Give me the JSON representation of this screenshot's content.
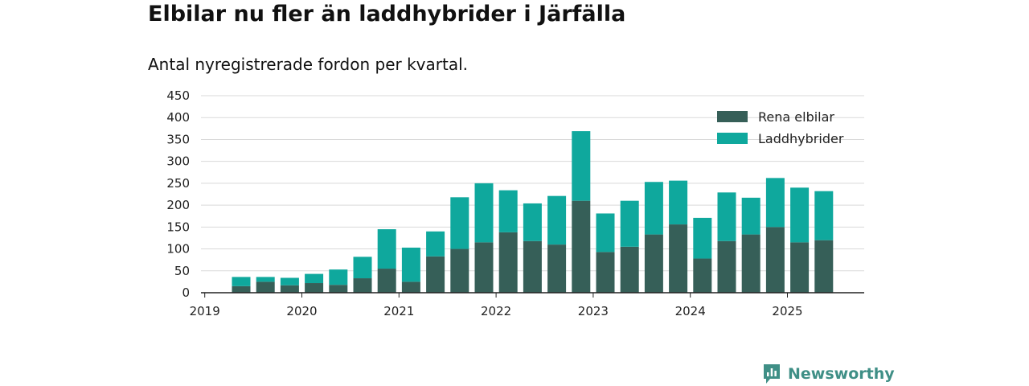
{
  "title": "Elbilar nu fler än laddhybrider i Järfälla",
  "subtitle": "Antal nyregistrerade fordon per kvartal.",
  "brand": "Newsworthy",
  "colors": {
    "elbilar": "#365f58",
    "laddhybrider": "#0fa89d",
    "brand": "#3f8f86",
    "grid": "#d9d9d9",
    "axis": "#222222"
  },
  "chart_data": {
    "type": "bar",
    "stacked": true,
    "x_tick_labels": [
      "2019",
      "2020",
      "2021",
      "2022",
      "2023",
      "2024",
      "2025"
    ],
    "categories": [
      "2019 Q2",
      "2019 Q3",
      "2019 Q4",
      "2020 Q1",
      "2020 Q2",
      "2020 Q3",
      "2020 Q4",
      "2021 Q1",
      "2021 Q2",
      "2021 Q3",
      "2021 Q4",
      "2022 Q1",
      "2022 Q2",
      "2022 Q3",
      "2022 Q4",
      "2023 Q1",
      "2023 Q2",
      "2023 Q3",
      "2023 Q4",
      "2024 Q1",
      "2024 Q2",
      "2024 Q3",
      "2024 Q4",
      "2025 Q1",
      "2025 Q2"
    ],
    "series": [
      {
        "name": "Rena elbilar",
        "color": "#365f58",
        "values": [
          15,
          25,
          17,
          22,
          18,
          33,
          55,
          25,
          83,
          100,
          115,
          138,
          118,
          110,
          210,
          93,
          105,
          133,
          156,
          78,
          118,
          133,
          150,
          115,
          120
        ]
      },
      {
        "name": "Laddhybrider",
        "color": "#0fa89d",
        "values": [
          21,
          11,
          17,
          21,
          35,
          49,
          90,
          78,
          57,
          118,
          135,
          96,
          86,
          111,
          159,
          88,
          105,
          120,
          100,
          93,
          111,
          84,
          112,
          125,
          112
        ]
      }
    ],
    "ylim": [
      0,
      450
    ],
    "y_ticks": [
      0,
      50,
      100,
      150,
      200,
      250,
      300,
      350,
      400,
      450
    ],
    "grid": true,
    "legend_position": "top-right"
  }
}
